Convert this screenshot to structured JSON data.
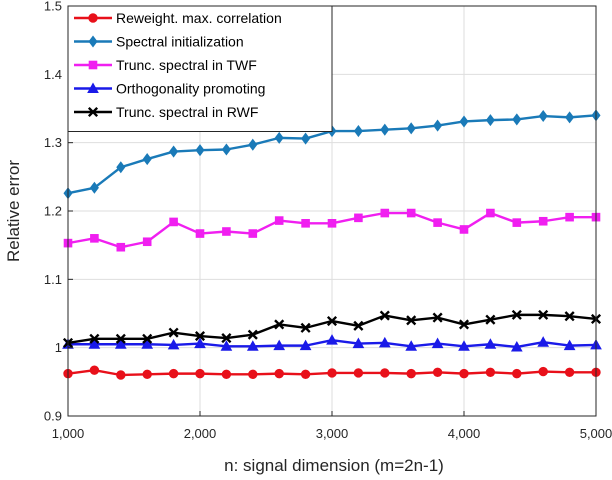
{
  "chart_data": {
    "type": "line",
    "title": "",
    "xlabel": "n: signal dimension (m=2n-1)",
    "ylabel": "Relative error",
    "xlim": [
      1000,
      5000
    ],
    "ylim": [
      0.9,
      1.5
    ],
    "xticks": [
      1000,
      2000,
      3000,
      4000,
      5000
    ],
    "xtick_labels": [
      "1,000",
      "2,000",
      "3,000",
      "4,000",
      "5,000"
    ],
    "yticks": [
      0.9,
      1.0,
      1.1,
      1.2,
      1.3,
      1.4,
      1.5
    ],
    "ytick_labels": [
      "0.9",
      "1",
      "1.1",
      "1.2",
      "1.3",
      "1.4",
      "1.5"
    ],
    "grid": true,
    "legend_position": "top-left",
    "x": [
      1000,
      1200,
      1400,
      1600,
      1800,
      2000,
      2200,
      2400,
      2600,
      2800,
      3000,
      3200,
      3400,
      3600,
      3800,
      4000,
      4200,
      4400,
      4600,
      4800,
      5000
    ],
    "series": [
      {
        "name": "Reweight. max. correlation",
        "color": "#e8101a",
        "marker": "circle",
        "values": [
          0.962,
          0.967,
          0.96,
          0.961,
          0.962,
          0.962,
          0.961,
          0.961,
          0.962,
          0.961,
          0.963,
          0.963,
          0.963,
          0.962,
          0.964,
          0.962,
          0.964,
          0.962,
          0.965,
          0.964,
          0.964
        ]
      },
      {
        "name": "Spectral initialization",
        "color": "#1a7ab8",
        "marker": "diamond",
        "values": [
          1.226,
          1.234,
          1.264,
          1.276,
          1.287,
          1.289,
          1.29,
          1.297,
          1.307,
          1.306,
          1.317,
          1.317,
          1.319,
          1.321,
          1.325,
          1.331,
          1.333,
          1.334,
          1.339,
          1.337,
          1.34
        ]
      },
      {
        "name": "Trunc. spectral in TWF",
        "color": "#f01ff0",
        "marker": "square",
        "values": [
          1.153,
          1.16,
          1.147,
          1.155,
          1.184,
          1.167,
          1.17,
          1.167,
          1.186,
          1.182,
          1.182,
          1.19,
          1.197,
          1.197,
          1.183,
          1.173,
          1.197,
          1.183,
          1.185,
          1.191,
          1.191
        ]
      },
      {
        "name": "Orthogonality promoting",
        "color": "#1a1ae8",
        "marker": "triangle",
        "values": [
          1.005,
          1.005,
          1.005,
          1.005,
          1.004,
          1.006,
          1.002,
          1.002,
          1.003,
          1.003,
          1.011,
          1.006,
          1.007,
          1.002,
          1.006,
          1.002,
          1.005,
          1.001,
          1.008,
          1.003,
          1.004
        ]
      },
      {
        "name": "Trunc. spectral in RWF",
        "color": "#000000",
        "marker": "x",
        "values": [
          1.007,
          1.013,
          1.013,
          1.013,
          1.022,
          1.017,
          1.014,
          1.019,
          1.034,
          1.029,
          1.039,
          1.032,
          1.047,
          1.04,
          1.044,
          1.034,
          1.041,
          1.048,
          1.048,
          1.046,
          1.042
        ]
      }
    ]
  }
}
